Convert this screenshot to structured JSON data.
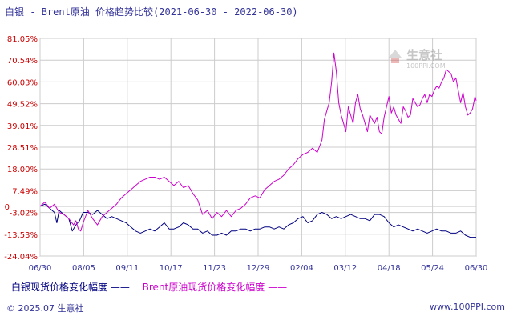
{
  "header": {
    "title": "白银 - Brent原油 价格趋势比较",
    "range": "(2021-06-30 - 2022-06-30)"
  },
  "legend": {
    "series1": "白银现货价格变化幅度 ——",
    "series2": "Brent原油现货价格变化幅度 ——"
  },
  "footer": {
    "copyright": "© 2025.07 生意社",
    "url": "www.100PPI.com"
  },
  "watermark": {
    "text": "生意社",
    "sub": "100PPI.COM"
  },
  "colors": {
    "silver": "#000080",
    "brent": "#cc00cc",
    "grid": "#cccccc",
    "axis": "#333399"
  },
  "chart_data": {
    "type": "line",
    "title": "白银 - Brent原油 价格趋势比较(2021-06-30 - 2022-06-30)",
    "x_ticks": [
      "06/30",
      "08/05",
      "09/11",
      "10/17",
      "11/23",
      "12/29",
      "02/04",
      "03/12",
      "04/18",
      "05/24",
      "06/30"
    ],
    "y_ticks": [
      "81.05%",
      "70.54%",
      "60.03%",
      "49.52%",
      "39.01%",
      "28.51%",
      "18.00%",
      "7.49%",
      "-3.02%",
      "-13.53%",
      "-24.04%"
    ],
    "y_tick_values": [
      81.05,
      70.54,
      60.03,
      49.52,
      39.01,
      28.51,
      18.0,
      7.49,
      -3.02,
      -13.53,
      -24.04
    ],
    "y_zero_label": "0",
    "ylim": [
      -24.04,
      81.05
    ],
    "x_range_days": [
      0,
      365
    ],
    "grid": true,
    "series": [
      {
        "name": "白银现货价格变化幅度",
        "points": [
          [
            0,
            0
          ],
          [
            4,
            1
          ],
          [
            8,
            -1
          ],
          [
            12,
            -3
          ],
          [
            14,
            -8
          ],
          [
            16,
            -2
          ],
          [
            20,
            -4
          ],
          [
            24,
            -6
          ],
          [
            27,
            -12
          ],
          [
            30,
            -9
          ],
          [
            33,
            -7
          ],
          [
            36,
            -3
          ],
          [
            40,
            -3
          ],
          [
            44,
            -4
          ],
          [
            48,
            -2
          ],
          [
            52,
            -4
          ],
          [
            56,
            -6
          ],
          [
            60,
            -5
          ],
          [
            64,
            -6
          ],
          [
            68,
            -7
          ],
          [
            72,
            -8
          ],
          [
            76,
            -10
          ],
          [
            80,
            -12
          ],
          [
            84,
            -13
          ],
          [
            88,
            -12
          ],
          [
            92,
            -11
          ],
          [
            96,
            -12
          ],
          [
            100,
            -10
          ],
          [
            104,
            -8
          ],
          [
            108,
            -11
          ],
          [
            112,
            -11
          ],
          [
            116,
            -10
          ],
          [
            120,
            -8
          ],
          [
            124,
            -9
          ],
          [
            128,
            -11
          ],
          [
            132,
            -11
          ],
          [
            136,
            -13
          ],
          [
            140,
            -12
          ],
          [
            144,
            -14
          ],
          [
            148,
            -14
          ],
          [
            152,
            -13
          ],
          [
            156,
            -14
          ],
          [
            160,
            -12
          ],
          [
            164,
            -12
          ],
          [
            168,
            -11
          ],
          [
            172,
            -11
          ],
          [
            176,
            -12
          ],
          [
            180,
            -11
          ],
          [
            184,
            -11
          ],
          [
            188,
            -10
          ],
          [
            192,
            -10
          ],
          [
            196,
            -11
          ],
          [
            200,
            -10
          ],
          [
            204,
            -11
          ],
          [
            208,
            -9
          ],
          [
            212,
            -8
          ],
          [
            216,
            -6
          ],
          [
            220,
            -5
          ],
          [
            224,
            -8
          ],
          [
            228,
            -7
          ],
          [
            232,
            -4
          ],
          [
            236,
            -3
          ],
          [
            240,
            -4
          ],
          [
            244,
            -6
          ],
          [
            248,
            -5
          ],
          [
            252,
            -6
          ],
          [
            256,
            -5
          ],
          [
            260,
            -4
          ],
          [
            264,
            -5
          ],
          [
            268,
            -6
          ],
          [
            272,
            -6
          ],
          [
            276,
            -7
          ],
          [
            280,
            -4
          ],
          [
            284,
            -4
          ],
          [
            288,
            -5
          ],
          [
            292,
            -8
          ],
          [
            296,
            -10
          ],
          [
            300,
            -9
          ],
          [
            304,
            -10
          ],
          [
            308,
            -11
          ],
          [
            312,
            -12
          ],
          [
            316,
            -11
          ],
          [
            320,
            -12
          ],
          [
            324,
            -13
          ],
          [
            328,
            -12
          ],
          [
            332,
            -11
          ],
          [
            336,
            -12
          ],
          [
            340,
            -12
          ],
          [
            344,
            -13
          ],
          [
            348,
            -13
          ],
          [
            352,
            -12
          ],
          [
            356,
            -14
          ],
          [
            360,
            -15
          ],
          [
            365,
            -15
          ]
        ]
      },
      {
        "name": "Brent原油现货价格变化幅度",
        "points": [
          [
            0,
            0
          ],
          [
            4,
            2
          ],
          [
            8,
            -1
          ],
          [
            12,
            1
          ],
          [
            16,
            -3
          ],
          [
            20,
            -4
          ],
          [
            24,
            -6
          ],
          [
            28,
            -9
          ],
          [
            30,
            -7
          ],
          [
            32,
            -11
          ],
          [
            34,
            -12
          ],
          [
            36,
            -8
          ],
          [
            40,
            -2
          ],
          [
            44,
            -6
          ],
          [
            48,
            -9
          ],
          [
            52,
            -5
          ],
          [
            56,
            -3
          ],
          [
            60,
            -1
          ],
          [
            64,
            1
          ],
          [
            68,
            4
          ],
          [
            72,
            6
          ],
          [
            76,
            8
          ],
          [
            80,
            10
          ],
          [
            84,
            12
          ],
          [
            88,
            13
          ],
          [
            92,
            14
          ],
          [
            96,
            14
          ],
          [
            100,
            13
          ],
          [
            104,
            14
          ],
          [
            108,
            12
          ],
          [
            112,
            10
          ],
          [
            116,
            12
          ],
          [
            120,
            9
          ],
          [
            124,
            10
          ],
          [
            128,
            6
          ],
          [
            132,
            3
          ],
          [
            136,
            -4
          ],
          [
            140,
            -2
          ],
          [
            144,
            -6
          ],
          [
            148,
            -3
          ],
          [
            152,
            -5
          ],
          [
            156,
            -2
          ],
          [
            160,
            -5
          ],
          [
            164,
            -2
          ],
          [
            168,
            -1
          ],
          [
            172,
            1
          ],
          [
            176,
            4
          ],
          [
            180,
            5
          ],
          [
            184,
            4
          ],
          [
            188,
            8
          ],
          [
            192,
            10
          ],
          [
            196,
            12
          ],
          [
            200,
            13
          ],
          [
            204,
            15
          ],
          [
            208,
            18
          ],
          [
            212,
            20
          ],
          [
            216,
            23
          ],
          [
            220,
            25
          ],
          [
            224,
            26
          ],
          [
            228,
            28
          ],
          [
            232,
            26
          ],
          [
            236,
            32
          ],
          [
            238,
            42
          ],
          [
            240,
            46
          ],
          [
            242,
            50
          ],
          [
            244,
            60
          ],
          [
            246,
            74
          ],
          [
            248,
            65
          ],
          [
            250,
            50
          ],
          [
            252,
            44
          ],
          [
            254,
            40
          ],
          [
            256,
            36
          ],
          [
            258,
            48
          ],
          [
            260,
            44
          ],
          [
            262,
            40
          ],
          [
            264,
            50
          ],
          [
            266,
            54
          ],
          [
            268,
            47
          ],
          [
            270,
            44
          ],
          [
            272,
            40
          ],
          [
            274,
            36
          ],
          [
            276,
            44
          ],
          [
            278,
            42
          ],
          [
            280,
            40
          ],
          [
            282,
            43
          ],
          [
            284,
            36
          ],
          [
            286,
            35
          ],
          [
            288,
            43
          ],
          [
            290,
            48
          ],
          [
            292,
            53
          ],
          [
            294,
            45
          ],
          [
            296,
            48
          ],
          [
            298,
            44
          ],
          [
            300,
            42
          ],
          [
            302,
            40
          ],
          [
            304,
            48
          ],
          [
            306,
            46
          ],
          [
            308,
            43
          ],
          [
            310,
            44
          ],
          [
            312,
            52
          ],
          [
            314,
            50
          ],
          [
            316,
            48
          ],
          [
            318,
            49
          ],
          [
            320,
            52
          ],
          [
            322,
            54
          ],
          [
            324,
            50
          ],
          [
            326,
            54
          ],
          [
            328,
            53
          ],
          [
            330,
            56
          ],
          [
            332,
            58
          ],
          [
            334,
            57
          ],
          [
            336,
            60
          ],
          [
            338,
            62
          ],
          [
            340,
            66
          ],
          [
            342,
            65
          ],
          [
            344,
            64
          ],
          [
            346,
            60
          ],
          [
            348,
            62
          ],
          [
            350,
            56
          ],
          [
            352,
            50
          ],
          [
            354,
            55
          ],
          [
            356,
            48
          ],
          [
            358,
            44
          ],
          [
            360,
            45
          ],
          [
            362,
            47
          ],
          [
            364,
            53
          ],
          [
            365,
            51
          ]
        ]
      }
    ]
  }
}
